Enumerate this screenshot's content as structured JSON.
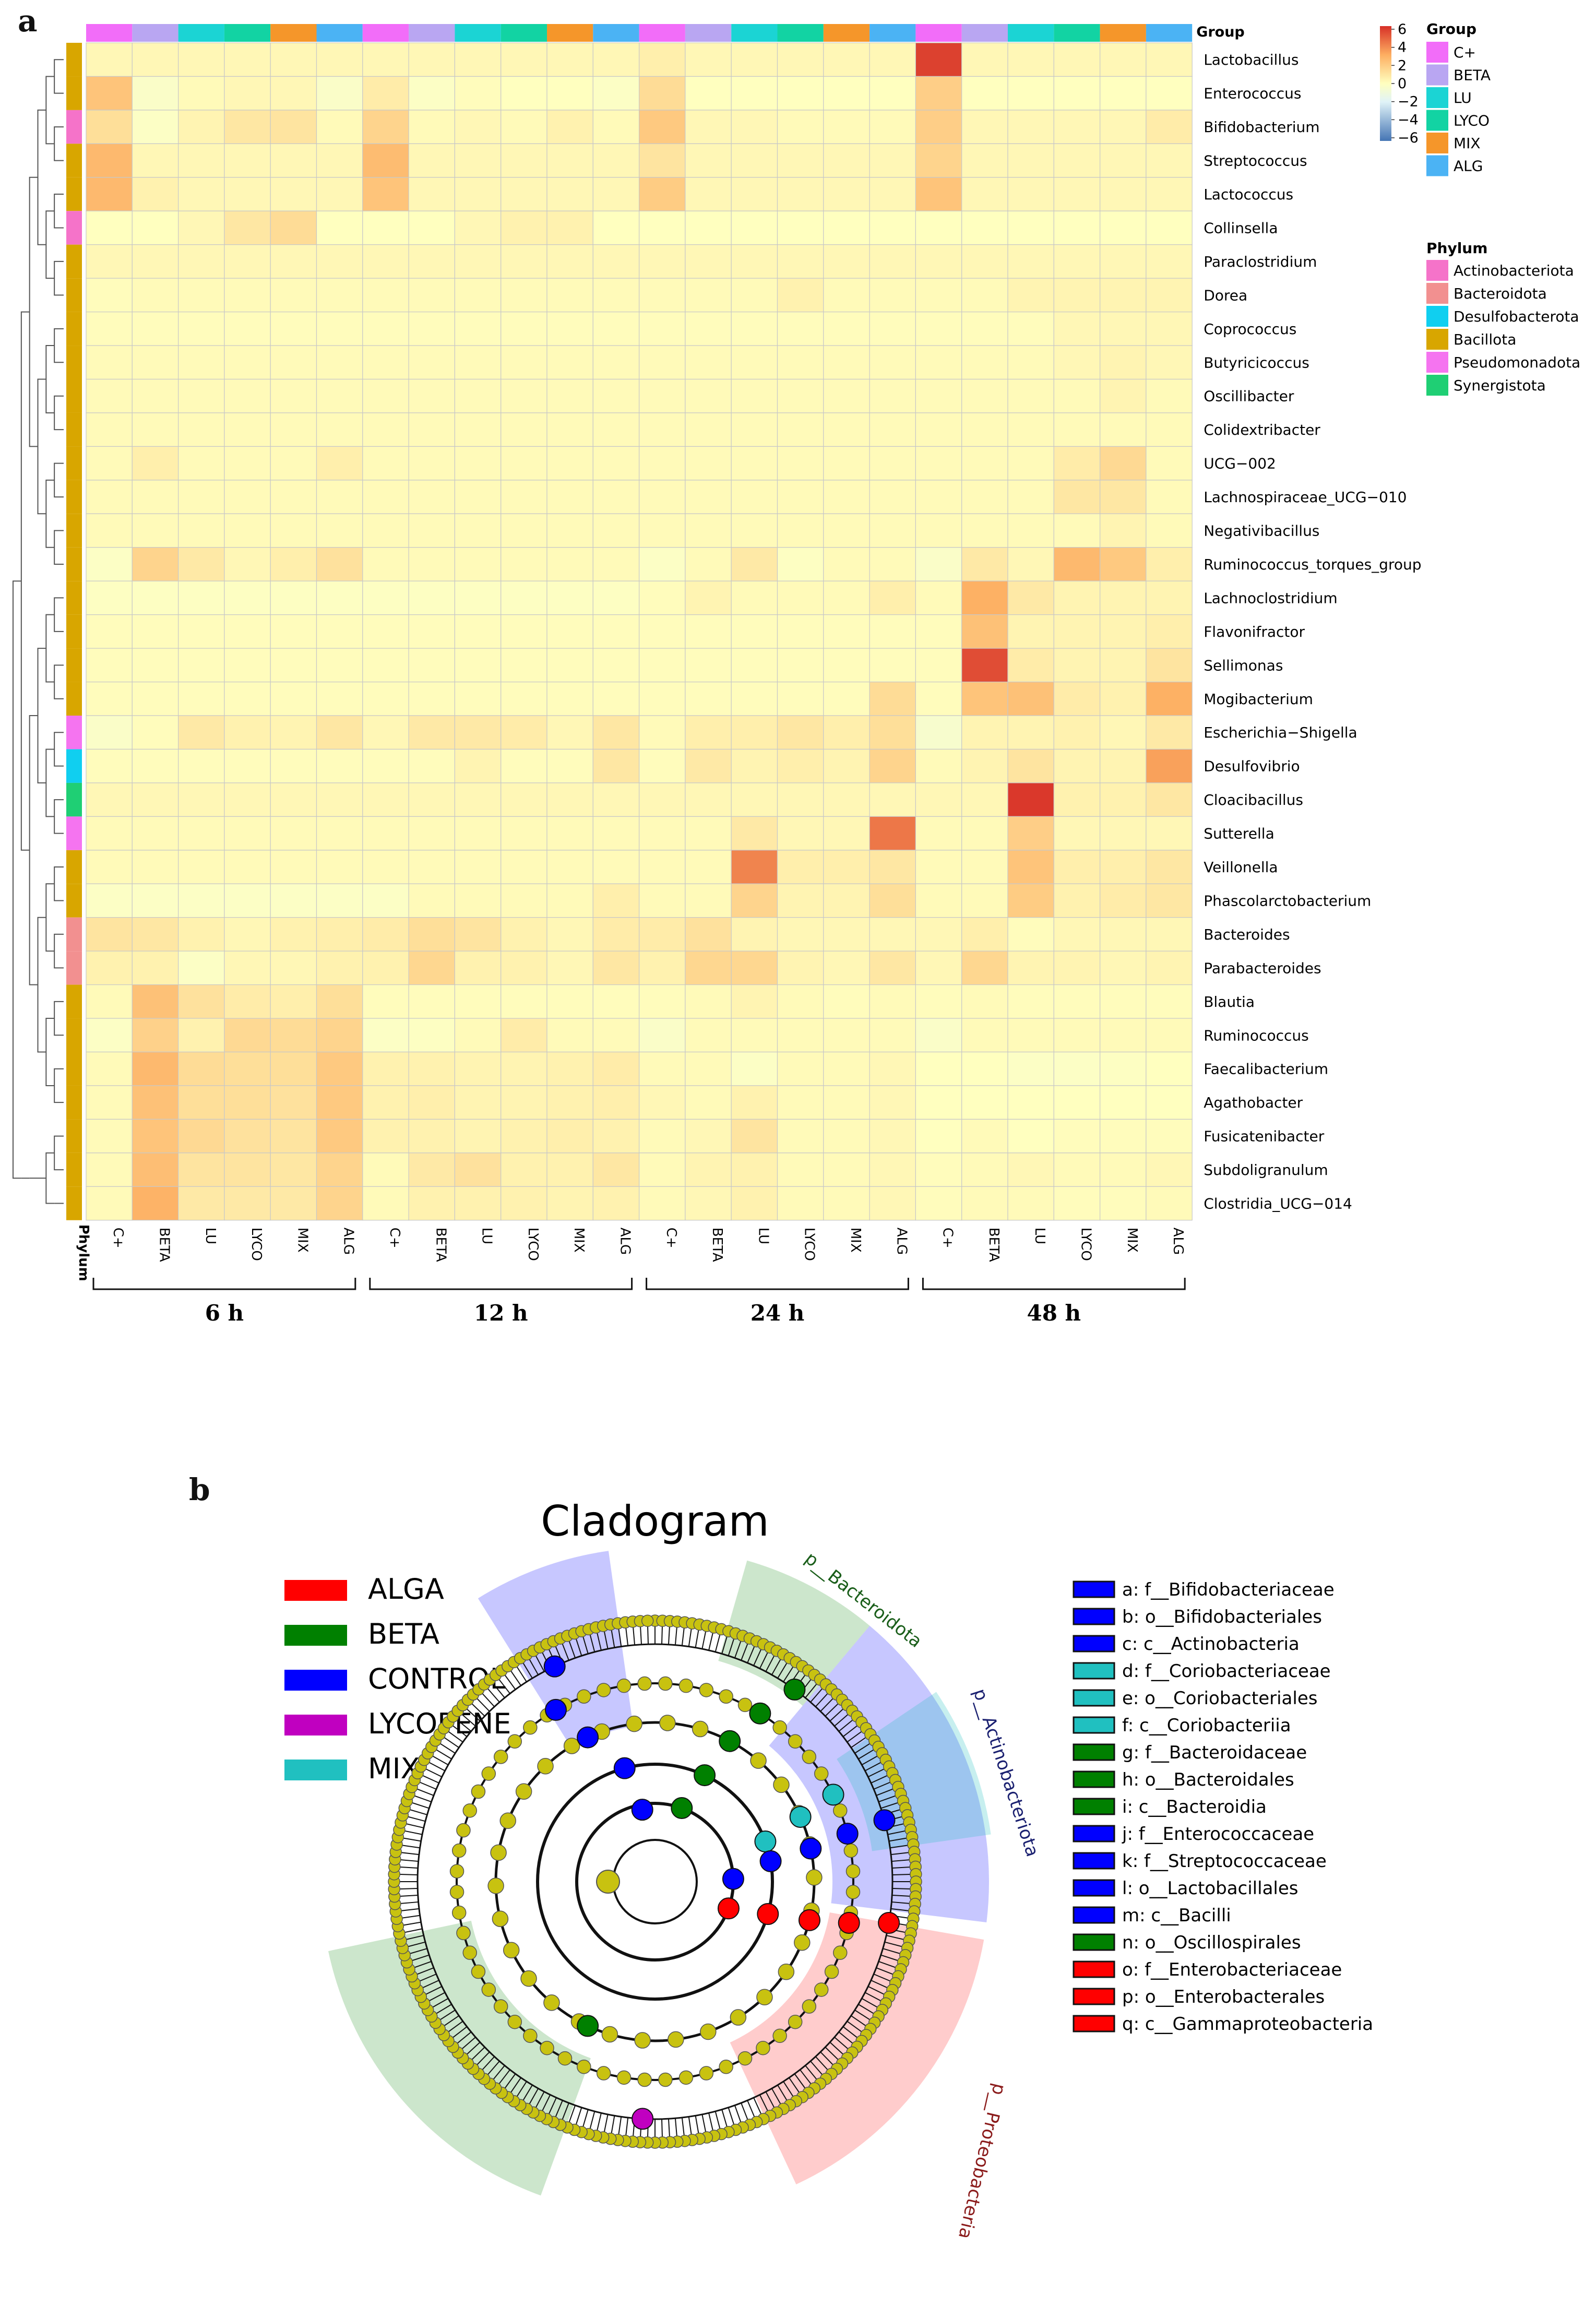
{
  "panel_a_label": "a",
  "panel_b_label": "b",
  "chart_data": [
    {
      "type": "heatmap",
      "title": "",
      "group_legend_title": "Group",
      "phylum_legend_title": "Phylum",
      "phylum_axis_label": "Phylum",
      "group_row_label": "Group",
      "color_scale": {
        "min": -6,
        "max": 6,
        "ticks": [
          "6",
          "4",
          "2",
          "0",
          "−2",
          "−4",
          "−6"
        ]
      },
      "colors": {
        "high": "#d73027",
        "mid_high": "#fdae61",
        "mid": "#ffffbf",
        "low": "#4575b4"
      },
      "groups": [
        {
          "name": "C+",
          "color": "#f26df9"
        },
        {
          "name": "BETA",
          "color": "#b9a6f2"
        },
        {
          "name": "LU",
          "color": "#1bd4d4"
        },
        {
          "name": "LYCO",
          "color": "#12d3a3"
        },
        {
          "name": "MIX",
          "color": "#f5962a"
        },
        {
          "name": "ALG",
          "color": "#4bb3f4"
        }
      ],
      "phyla": [
        {
          "name": "Actinobacteriota",
          "color": "#f573c9"
        },
        {
          "name": "Bacteroidota",
          "color": "#f29090"
        },
        {
          "name": "Desulfobacterota",
          "color": "#10cff0"
        },
        {
          "name": "Bacillota",
          "color": "#d8a600"
        },
        {
          "name": "Pseudomonadota",
          "color": "#f574f0"
        },
        {
          "name": "Synergistota",
          "color": "#1fcf74"
        }
      ],
      "time_points": [
        "6 h",
        "12 h",
        "24 h",
        "48 h"
      ],
      "columns": [
        "C+",
        "BETA",
        "LU",
        "LYCO",
        "MIX",
        "ALG",
        "C+",
        "BETA",
        "LU",
        "LYCO",
        "MIX",
        "ALG",
        "C+",
        "BETA",
        "LU",
        "LYCO",
        "MIX",
        "ALG",
        "C+",
        "BETA",
        "LU",
        "LYCO",
        "MIX",
        "ALG"
      ],
      "rows": [
        "Lactobacillus",
        "Enterococcus",
        "Bifidobacterium",
        "Streptococcus",
        "Lactococcus",
        "Collinsella",
        "Paraclostridium",
        "Dorea",
        "Coprococcus",
        "Butyricicoccus",
        "Oscillibacter",
        "Colidextribacter",
        "UCG−002",
        "Lachnospiraceae_UCG−010",
        "Negativibacillus",
        "Ruminococcus_torques_group",
        "Lachnoclostridium",
        "Flavonifractor",
        "Sellimonas",
        "Mogibacterium",
        "Escherichia−Shigella",
        "Desulfovibrio",
        "Cloacibacillus",
        "Sutterella",
        "Veillonella",
        "Phascolarctobacterium",
        "Bacteroides",
        "Parabacteroides",
        "Blautia",
        "Ruminococcus",
        "Faecalibacterium",
        "Agathobacter",
        "Fusicatenibacter",
        "Subdoligranulum",
        "Clostridia_UCG−014"
      ],
      "row_phylum": [
        3,
        3,
        0,
        3,
        3,
        0,
        3,
        3,
        3,
        3,
        3,
        3,
        3,
        3,
        3,
        3,
        3,
        3,
        3,
        3,
        4,
        2,
        5,
        4,
        3,
        3,
        1,
        1,
        3,
        3,
        3,
        3,
        3,
        3,
        3
      ],
      "values": [
        [
          0.3,
          0.3,
          0.3,
          0.3,
          0.3,
          0.3,
          0.3,
          0.3,
          0.3,
          0.3,
          0.3,
          0.3,
          0.6,
          0.3,
          0.3,
          0.3,
          0.3,
          0.3,
          5.6,
          0.3,
          0.3,
          0.3,
          0.3,
          0.3
        ],
        [
          2.2,
          -0.3,
          0.2,
          0.3,
          0.3,
          -0.3,
          0.7,
          -0.2,
          0.1,
          0.0,
          0.0,
          -0.2,
          1.3,
          0.0,
          0.0,
          0.0,
          0.0,
          0.0,
          1.8,
          0.0,
          0.0,
          0.0,
          0.0,
          0.0
        ],
        [
          1.2,
          -0.2,
          0.4,
          0.9,
          1.0,
          0.2,
          1.6,
          0.2,
          0.3,
          0.2,
          0.5,
          0.2,
          2.0,
          0.3,
          0.3,
          0.2,
          0.2,
          0.2,
          1.8,
          0.3,
          0.3,
          0.3,
          0.3,
          0.7
        ],
        [
          2.6,
          0.3,
          0.3,
          0.3,
          0.3,
          0.3,
          2.5,
          0.3,
          0.3,
          0.3,
          0.3,
          0.3,
          1.0,
          0.3,
          0.3,
          0.3,
          0.3,
          0.3,
          1.6,
          0.3,
          0.3,
          0.3,
          0.3,
          0.3
        ],
        [
          2.6,
          0.5,
          0.3,
          0.3,
          0.3,
          0.3,
          2.2,
          0.3,
          0.3,
          0.3,
          0.3,
          0.3,
          1.9,
          0.3,
          0.3,
          0.3,
          0.3,
          0.3,
          2.2,
          0.3,
          0.3,
          0.3,
          0.3,
          0.3
        ],
        [
          0.0,
          0.0,
          0.3,
          0.9,
          1.3,
          0.0,
          0.0,
          0.0,
          0.3,
          0.5,
          0.5,
          0.0,
          0.0,
          0.0,
          0.0,
          0.0,
          0.0,
          0.0,
          0.0,
          0.0,
          0.0,
          0.0,
          0.0,
          0.0
        ],
        [
          0.3,
          0.3,
          0.3,
          0.3,
          0.3,
          0.3,
          0.3,
          0.3,
          0.3,
          0.3,
          0.3,
          0.3,
          0.3,
          0.3,
          0.3,
          0.3,
          0.3,
          0.3,
          0.3,
          0.3,
          0.3,
          0.3,
          0.3,
          0.3
        ],
        [
          0.1,
          0.2,
          0.2,
          0.2,
          0.2,
          0.2,
          0.2,
          0.2,
          0.2,
          0.2,
          0.2,
          0.2,
          0.2,
          0.2,
          0.2,
          0.5,
          0.2,
          0.2,
          0.2,
          0.2,
          0.4,
          0.4,
          0.4,
          0.4
        ],
        [
          0.1,
          0.1,
          0.1,
          0.1,
          0.1,
          0.1,
          0.1,
          0.1,
          0.1,
          0.1,
          0.1,
          0.1,
          0.1,
          0.1,
          0.1,
          0.1,
          0.1,
          0.1,
          0.1,
          0.1,
          0.1,
          0.3,
          0.3,
          0.3
        ],
        [
          0.2,
          0.2,
          0.2,
          0.2,
          0.2,
          0.2,
          0.2,
          0.2,
          0.2,
          0.2,
          0.2,
          0.2,
          0.2,
          0.2,
          0.2,
          0.2,
          0.2,
          0.2,
          0.2,
          0.2,
          0.2,
          0.3,
          0.4,
          0.3
        ],
        [
          0.2,
          0.2,
          0.2,
          0.2,
          0.2,
          0.2,
          0.2,
          0.2,
          0.2,
          0.2,
          0.2,
          0.2,
          0.2,
          0.2,
          0.2,
          0.2,
          0.2,
          0.2,
          0.2,
          0.2,
          0.2,
          0.2,
          0.4,
          0.2
        ],
        [
          0.2,
          0.2,
          0.2,
          0.2,
          0.2,
          0.2,
          0.2,
          0.2,
          0.2,
          0.2,
          0.2,
          0.2,
          0.2,
          0.2,
          0.2,
          0.2,
          0.2,
          0.2,
          0.2,
          0.2,
          0.2,
          0.2,
          0.2,
          0.2
        ],
        [
          0.2,
          0.6,
          0.2,
          0.2,
          0.2,
          0.6,
          0.2,
          0.2,
          0.2,
          0.2,
          0.2,
          0.2,
          0.2,
          0.2,
          0.2,
          0.2,
          0.2,
          0.2,
          0.2,
          0.2,
          0.2,
          0.7,
          1.4,
          0.2
        ],
        [
          0.2,
          0.2,
          0.2,
          0.2,
          0.2,
          0.2,
          0.2,
          0.2,
          0.2,
          0.2,
          0.2,
          0.2,
          0.2,
          0.2,
          0.2,
          0.2,
          0.2,
          0.2,
          0.2,
          0.2,
          0.2,
          0.9,
          0.9,
          0.2
        ],
        [
          0.2,
          0.2,
          0.2,
          0.2,
          0.2,
          0.2,
          0.2,
          0.2,
          0.2,
          0.2,
          0.2,
          0.2,
          0.2,
          0.2,
          0.2,
          0.2,
          0.2,
          0.2,
          0.2,
          0.2,
          0.2,
          0.2,
          0.4,
          0.2
        ],
        [
          -0.2,
          1.6,
          0.8,
          0.3,
          0.6,
          1.1,
          0.2,
          0.2,
          0.2,
          0.2,
          0.2,
          0.2,
          -0.2,
          0.2,
          0.8,
          -0.1,
          0.2,
          0.2,
          -0.3,
          0.8,
          0.3,
          2.6,
          2.0,
          0.6
        ],
        [
          -0.1,
          -0.1,
          -0.1,
          -0.1,
          -0.1,
          -0.1,
          -0.1,
          -0.1,
          -0.1,
          -0.1,
          -0.1,
          -0.1,
          0.1,
          0.4,
          0.2,
          0.2,
          0.2,
          0.6,
          0.2,
          2.9,
          0.8,
          0.4,
          0.4,
          0.4
        ],
        [
          0.1,
          0.1,
          0.1,
          0.1,
          0.1,
          0.1,
          0.1,
          0.1,
          0.1,
          0.1,
          0.1,
          0.1,
          0.1,
          0.1,
          0.1,
          0.1,
          0.1,
          0.1,
          0.1,
          2.3,
          0.4,
          0.4,
          0.4,
          0.6
        ],
        [
          0.1,
          0.1,
          0.1,
          0.1,
          0.1,
          0.1,
          0.1,
          0.1,
          0.1,
          0.1,
          0.1,
          0.1,
          0.1,
          0.1,
          0.1,
          0.1,
          0.1,
          0.1,
          0.1,
          5.3,
          0.7,
          0.4,
          0.4,
          1.0
        ],
        [
          0.1,
          0.1,
          0.1,
          0.1,
          0.1,
          0.1,
          0.1,
          0.1,
          0.1,
          0.1,
          0.1,
          0.1,
          0.1,
          0.1,
          0.1,
          0.1,
          0.1,
          1.3,
          0.1,
          2.2,
          2.3,
          0.7,
          0.5,
          2.9
        ],
        [
          -0.3,
          0.1,
          0.8,
          0.5,
          0.4,
          0.9,
          0.3,
          0.8,
          0.8,
          0.7,
          0.3,
          0.9,
          0.2,
          0.6,
          0.6,
          0.9,
          0.6,
          1.2,
          -0.5,
          0.4,
          0.4,
          0.5,
          0.3,
          0.8
        ],
        [
          0.1,
          0.1,
          0.1,
          0.1,
          0.1,
          0.1,
          0.1,
          0.1,
          0.4,
          0.1,
          0.1,
          0.9,
          0.1,
          0.8,
          0.4,
          0.6,
          0.4,
          1.6,
          0.2,
          0.4,
          1.0,
          0.4,
          0.4,
          3.3
        ],
        [
          0.3,
          0.3,
          0.3,
          0.3,
          0.3,
          0.3,
          0.3,
          0.3,
          0.3,
          0.3,
          0.3,
          0.3,
          0.3,
          0.3,
          0.3,
          0.3,
          0.3,
          0.3,
          0.3,
          0.3,
          5.8,
          0.5,
          0.5,
          0.9
        ],
        [
          0.2,
          0.2,
          0.2,
          0.2,
          0.2,
          0.2,
          0.2,
          0.2,
          0.2,
          0.2,
          0.2,
          0.2,
          0.2,
          0.2,
          0.8,
          0.3,
          0.3,
          4.3,
          0.2,
          0.2,
          1.8,
          0.3,
          0.3,
          0.3
        ],
        [
          0.2,
          0.2,
          0.2,
          0.2,
          0.2,
          0.2,
          0.2,
          0.2,
          0.2,
          0.2,
          0.2,
          0.2,
          0.2,
          0.2,
          4.0,
          0.6,
          0.6,
          0.9,
          0.2,
          0.2,
          2.2,
          0.6,
          0.6,
          0.9
        ],
        [
          -0.2,
          -0.2,
          -0.2,
          -0.2,
          -0.2,
          -0.2,
          -0.2,
          0.2,
          0.2,
          0.2,
          0.2,
          0.6,
          0.2,
          0.2,
          1.6,
          0.4,
          0.4,
          1.2,
          0.2,
          0.2,
          1.9,
          0.5,
          0.7,
          0.9
        ],
        [
          1.0,
          0.9,
          0.5,
          0.3,
          0.5,
          0.6,
          0.7,
          1.2,
          1.0,
          0.5,
          0.3,
          0.7,
          0.7,
          1.1,
          0.4,
          0.3,
          0.3,
          0.3,
          0.3,
          0.6,
          0.1,
          0.3,
          0.3,
          0.3
        ],
        [
          0.5,
          0.5,
          -0.2,
          0.3,
          0.3,
          0.5,
          0.5,
          1.5,
          0.5,
          0.5,
          0.3,
          0.9,
          0.5,
          1.5,
          1.5,
          0.4,
          0.3,
          0.9,
          0.3,
          1.5,
          0.4,
          0.4,
          0.3,
          0.4
        ],
        [
          0.2,
          2.3,
          1.1,
          0.7,
          0.6,
          1.2,
          0.1,
          0.1,
          0.1,
          0.1,
          0.1,
          0.1,
          0.1,
          0.2,
          0.4,
          0.2,
          0.1,
          0.2,
          0.1,
          0.2,
          0.1,
          0.1,
          0.1,
          0.1
        ],
        [
          -0.2,
          1.7,
          0.5,
          1.4,
          1.3,
          1.6,
          -0.2,
          -0.1,
          0.2,
          0.7,
          0.2,
          0.2,
          -0.3,
          0.2,
          0.2,
          0.2,
          0.2,
          0.2,
          -0.3,
          0.2,
          0.2,
          0.2,
          0.2,
          0.2
        ],
        [
          0.2,
          2.6,
          1.3,
          1.2,
          1.2,
          2.0,
          0.5,
          0.5,
          0.4,
          0.4,
          0.5,
          0.7,
          0.2,
          0.2,
          -0.2,
          0.2,
          0.2,
          0.3,
          0.0,
          0.0,
          -0.2,
          -0.2,
          -0.1,
          0.0
        ],
        [
          0.2,
          2.3,
          1.2,
          1.2,
          1.1,
          2.0,
          0.5,
          0.6,
          0.4,
          0.4,
          0.5,
          0.6,
          0.3,
          0.2,
          0.5,
          0.2,
          0.2,
          0.3,
          0.0,
          0.0,
          0.0,
          0.0,
          0.0,
          0.0
        ],
        [
          0.2,
          2.2,
          1.4,
          1.1,
          1.0,
          2.0,
          0.5,
          0.5,
          0.4,
          0.5,
          0.6,
          0.5,
          0.2,
          0.3,
          1.0,
          0.2,
          0.2,
          0.3,
          0.0,
          0.2,
          0.0,
          0.1,
          0.1,
          0.1
        ],
        [
          0.2,
          2.4,
          1.0,
          1.0,
          0.9,
          1.6,
          0.2,
          0.8,
          1.1,
          0.5,
          0.5,
          0.9,
          0.2,
          0.4,
          0.5,
          0.2,
          0.2,
          0.3,
          0.1,
          0.2,
          0.3,
          0.2,
          0.2,
          0.3
        ],
        [
          0.2,
          2.8,
          0.8,
          0.8,
          0.8,
          1.6,
          0.2,
          0.5,
          0.5,
          0.5,
          0.4,
          0.5,
          0.2,
          0.3,
          0.5,
          0.2,
          0.2,
          0.3,
          0.1,
          0.2,
          0.2,
          0.1,
          0.1,
          0.2
        ]
      ]
    },
    {
      "type": "other",
      "subtype": "cladogram",
      "title": "Cladogram",
      "groups": [
        {
          "name": "ALGA",
          "color": "#ff0000"
        },
        {
          "name": "BETA",
          "color": "#008000"
        },
        {
          "name": "CONTROL",
          "color": "#0000ff"
        },
        {
          "name": "LYCOPENE",
          "color": "#c000c0"
        },
        {
          "name": "MIX",
          "color": "#20c0c0"
        }
      ],
      "node_color": "#c8c210",
      "clade_labels": [
        {
          "text": "p__Bacteroidota",
          "group": "BETA"
        },
        {
          "text": "p__Actinobacteriota",
          "group": "CONTROL"
        },
        {
          "text": "p__Proteobacteria",
          "group": "ALGA"
        }
      ],
      "biomarkers": [
        {
          "key": "a",
          "name": "f__Bifidobacteriaceae",
          "group": "CONTROL"
        },
        {
          "key": "b",
          "name": "o__Bifidobacteriales",
          "group": "CONTROL"
        },
        {
          "key": "c",
          "name": "c__Actinobacteria",
          "group": "CONTROL"
        },
        {
          "key": "d",
          "name": "f__Coriobacteriaceae",
          "group": "MIX"
        },
        {
          "key": "e",
          "name": "o__Coriobacteriales",
          "group": "MIX"
        },
        {
          "key": "f",
          "name": "c__Coriobacteriia",
          "group": "MIX"
        },
        {
          "key": "g",
          "name": "f__Bacteroidaceae",
          "group": "BETA"
        },
        {
          "key": "h",
          "name": "o__Bacteroidales",
          "group": "BETA"
        },
        {
          "key": "i",
          "name": "c__Bacteroidia",
          "group": "BETA"
        },
        {
          "key": "j",
          "name": "f__Enterococcaceae",
          "group": "CONTROL"
        },
        {
          "key": "k",
          "name": "f__Streptococcaceae",
          "group": "CONTROL"
        },
        {
          "key": "l",
          "name": "o__Lactobacillales",
          "group": "CONTROL"
        },
        {
          "key": "m",
          "name": "c__Bacilli",
          "group": "CONTROL"
        },
        {
          "key": "n",
          "name": "o__Oscillospirales",
          "group": "BETA"
        },
        {
          "key": "o",
          "name": "f__Enterobacteriaceae",
          "group": "ALGA"
        },
        {
          "key": "p",
          "name": "o__Enterobacterales",
          "group": "ALGA"
        },
        {
          "key": "q",
          "name": "c__Gammaproteobacteria",
          "group": "ALGA"
        }
      ]
    }
  ]
}
